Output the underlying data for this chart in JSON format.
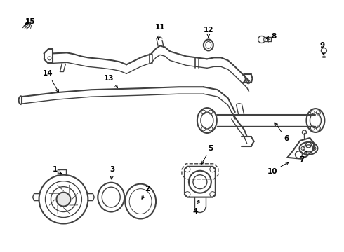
{
  "bg_color": "#ffffff",
  "line_color": "#404040",
  "text_color": "#000000",
  "fig_width": 4.9,
  "fig_height": 3.6,
  "dpi": 100
}
